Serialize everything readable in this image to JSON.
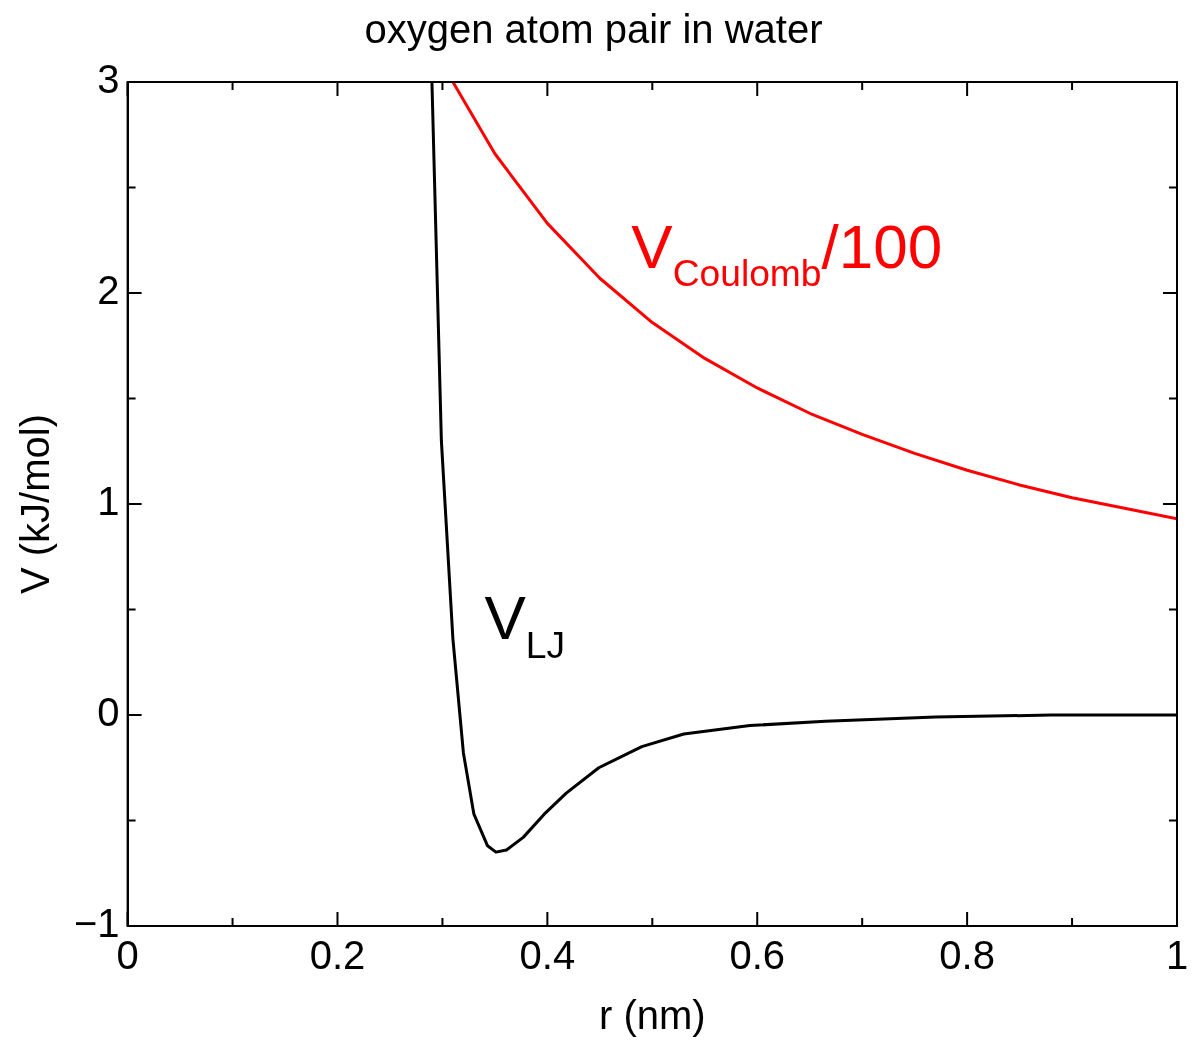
{
  "chart_data": {
    "type": "line",
    "title": "oxygen atom pair in water",
    "xlabel": "r (nm)",
    "ylabel": "V (kJ/mol)",
    "xlim": [
      0,
      1
    ],
    "ylim": [
      -1,
      3
    ],
    "xticks": [
      0,
      {
        "value": 0.1,
        "label": null
      },
      0.2,
      {
        "value": 0.3,
        "label": null
      },
      0.4,
      {
        "value": 0.5,
        "label": null
      },
      0.6,
      {
        "value": 0.7,
        "label": null
      },
      0.8,
      {
        "value": 0.9,
        "label": null
      },
      1
    ],
    "yticks": [
      {
        "value": -1,
        "label": "−1"
      },
      {
        "value": -0.5,
        "label": null
      },
      0,
      {
        "value": 0.5,
        "label": null
      },
      1,
      {
        "value": 1.5,
        "label": null
      },
      2,
      {
        "value": 2.5,
        "label": null
      },
      3
    ],
    "grid": false,
    "legend": false,
    "marker": "none",
    "line_style": "solid",
    "series": [
      {
        "name": "V$_{LJ}$",
        "color": "#000000",
        "x": [
          0.29,
          0.299,
          0.31,
          0.32,
          0.33,
          0.343,
          0.351,
          0.361,
          0.377,
          0.397,
          0.418,
          0.449,
          0.49,
          0.53,
          0.593,
          0.665,
          0.77,
          0.88,
          1.0
        ],
        "values": [
          3.0,
          1.3,
          0.36,
          -0.18,
          -0.47,
          -0.62,
          -0.65,
          -0.64,
          -0.58,
          -0.47,
          -0.37,
          -0.25,
          -0.15,
          -0.09,
          -0.05,
          -0.03,
          -0.01,
          0,
          0
        ]
      },
      {
        "name": "V$_{Coulomb}$/100",
        "color": "#ff0000",
        "x": [
          0.31,
          0.35,
          0.4,
          0.45,
          0.5,
          0.55,
          0.6,
          0.65,
          0.7,
          0.75,
          0.8,
          0.85,
          0.9,
          0.95,
          1.0
        ],
        "values": [
          3.0,
          2.66,
          2.33,
          2.07,
          1.86,
          1.69,
          1.55,
          1.43,
          1.33,
          1.24,
          1.16,
          1.09,
          1.03,
          0.98,
          0.93
        ]
      }
    ]
  }
}
